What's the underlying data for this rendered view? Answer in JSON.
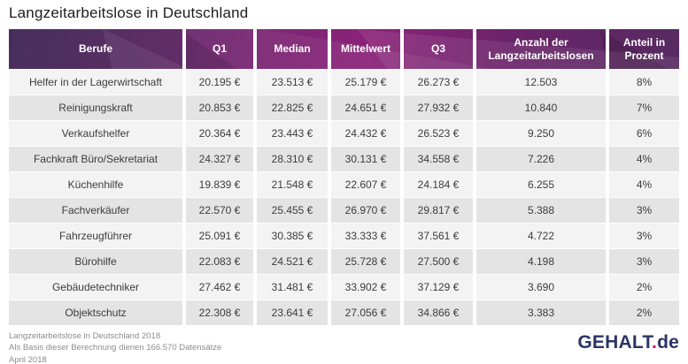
{
  "title": "Langzeitarbeitslose in Deutschland",
  "table": {
    "columns": [
      "Berufe",
      "Q1",
      "Median",
      "Mittelwert",
      "Q3",
      "Anzahl der Langzeitarbeitslosen",
      "Anteil in Prozent"
    ],
    "rows": [
      {
        "beruf": "Helfer in der Lagerwirtschaft",
        "q1": "20.195 €",
        "median": "23.513 €",
        "mittelwert": "25.179 €",
        "q3": "26.273 €",
        "anzahl": "12.503",
        "anteil": "8%"
      },
      {
        "beruf": "Reinigungskraft",
        "q1": "20.853 €",
        "median": "22.825 €",
        "mittelwert": "24.651 €",
        "q3": "27.932 €",
        "anzahl": "10.840",
        "anteil": "7%"
      },
      {
        "beruf": "Verkaufshelfer",
        "q1": "20.364 €",
        "median": "23.443 €",
        "mittelwert": "24.432 €",
        "q3": "26.523 €",
        "anzahl": "9.250",
        "anteil": "6%"
      },
      {
        "beruf": "Fachkraft Büro/Sekretariat",
        "q1": "24.327 €",
        "median": "28.310 €",
        "mittelwert": "30.131 €",
        "q3": "34.558 €",
        "anzahl": "7.226",
        "anteil": "4%"
      },
      {
        "beruf": "Küchenhilfe",
        "q1": "19.839 €",
        "median": "21.548 €",
        "mittelwert": "22.607 €",
        "q3": "24.184 €",
        "anzahl": "6.255",
        "anteil": "4%"
      },
      {
        "beruf": "Fachverkäufer",
        "q1": "22.570 €",
        "median": "25.455 €",
        "mittelwert": "26.970 €",
        "q3": "29.817 €",
        "anzahl": "5.388",
        "anteil": "3%"
      },
      {
        "beruf": "Fahrzeugführer",
        "q1": "25.091 €",
        "median": "30.385 €",
        "mittelwert": "33.333 €",
        "q3": "37.561 €",
        "anzahl": "4.722",
        "anteil": "3%"
      },
      {
        "beruf": "Bürohilfe",
        "q1": "22.083 €",
        "median": "24.521 €",
        "mittelwert": "25.728 €",
        "q3": "27.500 €",
        "anzahl": "4.198",
        "anteil": "3%"
      },
      {
        "beruf": "Gebäudetechniker",
        "q1": "27.462 €",
        "median": "31.481 €",
        "mittelwert": "33.902 €",
        "q3": "37.129 €",
        "anzahl": "3.690",
        "anteil": "2%"
      },
      {
        "beruf": "Objektschutz",
        "q1": "22.308 €",
        "median": "23.641 €",
        "mittelwert": "27.056 €",
        "q3": "34.866 €",
        "anzahl": "3.383",
        "anteil": "2%"
      }
    ]
  },
  "footer": {
    "line1": "Langzeitarbeitslose in Deutschland 2018",
    "line2": "Als Basis dieser Berechnung dienen 166.570 Datensätze",
    "line3": "April 2018"
  },
  "logo": {
    "name": "GEHALT",
    "dot": ".",
    "tld": "de"
  },
  "colors": {
    "header_gradient_left": "#46285f",
    "header_gradient_mid": "#8b2379",
    "header_gradient_right": "#562a61",
    "row_light": "#f3f3f3",
    "row_dark": "#e4e4e4",
    "logo_navy": "#2b3565",
    "logo_dot_pink": "#d6185e"
  }
}
